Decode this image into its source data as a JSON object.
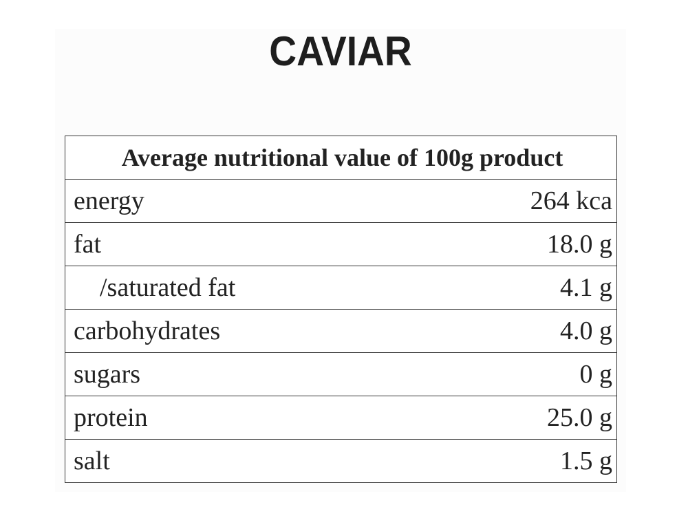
{
  "header": {
    "title": "CAVIAR"
  },
  "table": {
    "caption": "Average nutritional value of 100g product",
    "rows": [
      [
        "energy",
        "264 kca"
      ],
      [
        "fat",
        "18.0 g"
      ],
      [
        "/saturated fat",
        "4.1 g"
      ],
      [
        "carbohydrates",
        "4.0 g"
      ],
      [
        "sugars",
        "0 g"
      ],
      [
        "protein",
        "25.0 g"
      ],
      [
        "salt",
        "1.5 g"
      ]
    ]
  }
}
